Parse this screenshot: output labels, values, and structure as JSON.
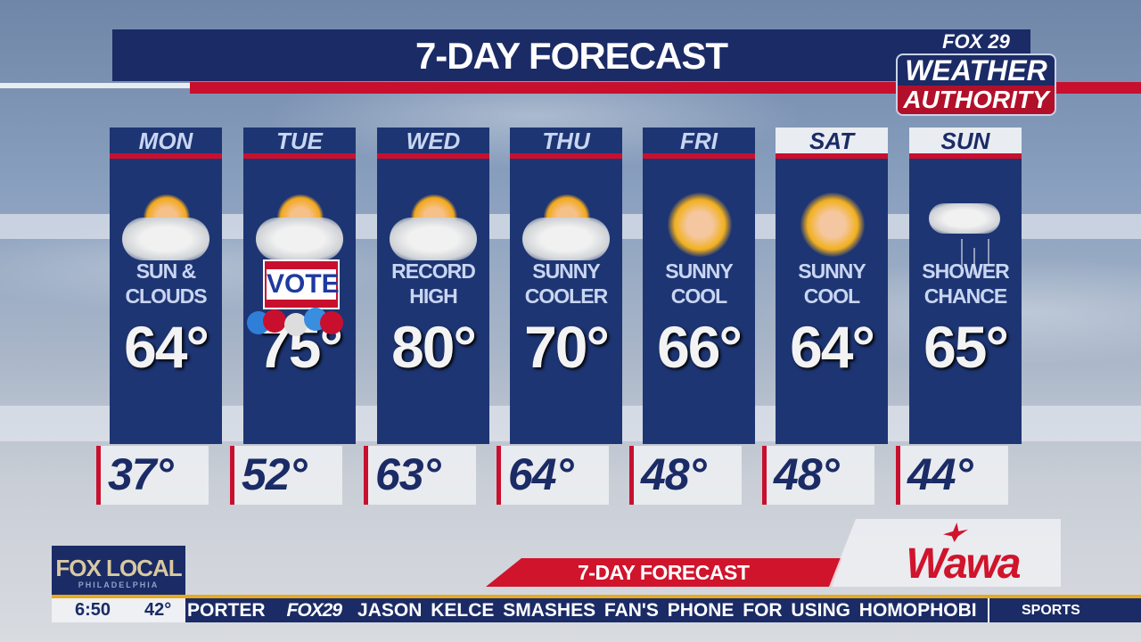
{
  "header": {
    "title": "7-DAY FORECAST",
    "logo": {
      "line1": "FOX 29",
      "line2": "WEATHER",
      "line3": "AUTHORITY"
    }
  },
  "days": [
    {
      "day": "MON",
      "condition": "SUN & CLOUDS",
      "high": "64°",
      "low": "37°",
      "icon": "sun-and-clouds-icon"
    },
    {
      "day": "TUE",
      "condition": "",
      "high": "75°",
      "low": "52°",
      "icon": "sun-and-clouds-icon",
      "badge": "VOTE"
    },
    {
      "day": "WED",
      "condition": "RECORD HIGH",
      "high": "80°",
      "low": "63°",
      "icon": "sun-and-clouds-icon"
    },
    {
      "day": "THU",
      "condition": "SUNNY COOLER",
      "high": "70°",
      "low": "64°",
      "icon": "sun-and-clouds-icon"
    },
    {
      "day": "FRI",
      "condition": "SUNNY COOL",
      "high": "66°",
      "low": "48°",
      "icon": "sun-icon"
    },
    {
      "day": "SAT",
      "condition": "SUNNY COOL",
      "high": "64°",
      "low": "48°",
      "icon": "sun-icon"
    },
    {
      "day": "SUN",
      "condition": "SHOWER CHANCE",
      "high": "65°",
      "low": "44°",
      "icon": "shower-icon"
    }
  ],
  "lower_third": {
    "banner": "7-DAY FORECAST",
    "sponsor": "Wawa"
  },
  "station": {
    "logo": "FOX LOCAL",
    "sub": "PHILADELPHIA"
  },
  "ticker": {
    "time": "6:50",
    "temp": "42°",
    "lead": "PORTER",
    "brand": "FOX29",
    "headline": "JASON KELCE SMASHES FAN'S PHONE FOR USING HOMOPHOBI",
    "section": "SPORTS"
  },
  "colors": {
    "navy": "#1b2b66",
    "red": "#c8102e",
    "gold": "#e8a91c"
  }
}
